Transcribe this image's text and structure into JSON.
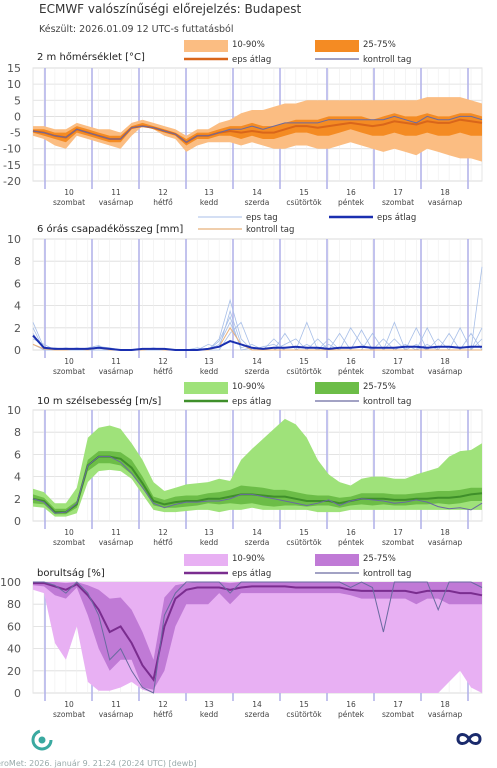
{
  "header": {
    "title": "ECMWF valószínűségi előrejelzés: Budapest",
    "subtitle": "Készült: 2026.01.09 12 UTC-s futtatásból"
  },
  "footer": {
    "text": "eroMet: 2026. január 9. 21:24 (20:24 UTC)  [dewb]"
  },
  "colors": {
    "temp_outer": "#fbbd82",
    "temp_inner": "#f48b23",
    "temp_mean": "#d9661a",
    "wind_outer": "#9fe27a",
    "wind_inner": "#6cbd47",
    "wind_mean": "#3f8f2a",
    "cloud_outer": "#e8b0f3",
    "cloud_inner": "#c07ad6",
    "cloud_mean": "#7a2d8f",
    "precip_member": "#a8bfe8",
    "precip_mean": "#1a2fb0",
    "precip_control": "#e8b07a",
    "control": "#6a6aa0",
    "day_line": "#b4b4ea",
    "grid": "#dcdcdc"
  },
  "days": [
    {
      "num": "10",
      "name": "szombat"
    },
    {
      "num": "11",
      "name": "vasárnap"
    },
    {
      "num": "12",
      "name": "hétfő"
    },
    {
      "num": "13",
      "name": "kedd"
    },
    {
      "num": "14",
      "name": "szerda"
    },
    {
      "num": "15",
      "name": "csütörtök"
    },
    {
      "num": "16",
      "name": "péntek"
    },
    {
      "num": "17",
      "name": "szombat"
    },
    {
      "num": "18",
      "name": "vasárnap"
    }
  ],
  "chart_data": [
    {
      "type": "area",
      "title": "2 m hőmérséklet [°C]",
      "ylim": [
        -20,
        15
      ],
      "yticks": [
        15,
        10,
        5,
        0,
        -5,
        -10,
        -15,
        -20
      ],
      "x_step_hours": 6,
      "legend": {
        "outer": "10-90%",
        "inner": "25-75%",
        "mean": "eps átlag",
        "control": "kontroll tag"
      },
      "p10": [
        -6,
        -7,
        -9,
        -10,
        -6,
        -7,
        -8,
        -9,
        -10,
        -6,
        -3,
        -4,
        -6,
        -7,
        -11,
        -9,
        -8,
        -8,
        -8,
        -9,
        -8,
        -9,
        -10,
        -10,
        -9,
        -9,
        -10,
        -10,
        -9,
        -8,
        -9,
        -10,
        -11,
        -10,
        -11,
        -12,
        -10,
        -11,
        -12,
        -13,
        -13,
        -14
      ],
      "p25": [
        -5,
        -6,
        -7,
        -8,
        -5,
        -6,
        -7,
        -8,
        -8,
        -4,
        -3,
        -4,
        -5,
        -6,
        -9,
        -7,
        -7,
        -6,
        -6,
        -7,
        -6,
        -7,
        -7,
        -6,
        -5,
        -5,
        -6,
        -6,
        -5,
        -4,
        -5,
        -6,
        -6,
        -5,
        -6,
        -6,
        -5,
        -6,
        -6,
        -5,
        -6,
        -6
      ],
      "mean": [
        -4.5,
        -5,
        -6,
        -6.5,
        -4,
        -5,
        -6,
        -7,
        -7,
        -3.5,
        -3,
        -3.5,
        -4.5,
        -5.5,
        -8,
        -6,
        -6,
        -5,
        -4.5,
        -5,
        -4.5,
        -5,
        -5,
        -4,
        -3,
        -3,
        -3.5,
        -3,
        -2.5,
        -2,
        -2.5,
        -3,
        -2.5,
        -1.5,
        -2,
        -2.5,
        -1.5,
        -2,
        -2,
        -1,
        -1.5,
        -2
      ],
      "p75": [
        -4,
        -4,
        -5,
        -5,
        -3,
        -4,
        -5,
        -6,
        -6,
        -3,
        -2,
        -3,
        -4,
        -5,
        -7,
        -5,
        -5,
        -4,
        -3,
        -3,
        -2,
        -3,
        -3,
        -2,
        -1,
        -1,
        -1,
        0,
        0,
        0,
        0,
        -1,
        0,
        1,
        0,
        0,
        1,
        0,
        0,
        1,
        1,
        0
      ],
      "p90": [
        -3,
        -3,
        -4,
        -4,
        -2,
        -3,
        -4,
        -4,
        -5,
        -2,
        -1,
        -2,
        -3,
        -4,
        -6,
        -4,
        -4,
        -2,
        -1,
        1,
        2,
        2,
        3,
        4,
        4,
        5,
        5,
        5,
        5,
        5,
        5,
        5,
        5,
        5,
        5,
        5,
        6,
        6,
        6,
        6,
        5,
        4
      ],
      "control": [
        -4.5,
        -5,
        -6,
        -6.5,
        -4,
        -5,
        -6,
        -7,
        -7,
        -3.5,
        -3,
        -3.5,
        -4.5,
        -5.5,
        -8,
        -6,
        -6,
        -5,
        -4,
        -4,
        -3,
        -4,
        -3,
        -2,
        -2,
        -2,
        -2,
        -1,
        -1,
        -1,
        -1,
        -1,
        -1,
        0,
        -1,
        -2,
        0,
        -1,
        -1,
        0,
        0,
        -1
      ]
    },
    {
      "type": "line",
      "title": "6 órás csapadékösszeg [mm]",
      "ylim": [
        0,
        10
      ],
      "yticks": [
        10,
        8,
        6,
        4,
        2,
        0
      ],
      "x_step_hours": 6,
      "legend": {
        "member": "eps tag",
        "mean": "eps átlag",
        "control": "kontroll tag"
      },
      "mean": [
        1.3,
        0.2,
        0.1,
        0.1,
        0.1,
        0.1,
        0.2,
        0.1,
        0,
        0,
        0.1,
        0.1,
        0.1,
        0,
        0,
        0,
        0.1,
        0.3,
        0.8,
        0.5,
        0.2,
        0.1,
        0.2,
        0.2,
        0.3,
        0.2,
        0.2,
        0.1,
        0.2,
        0.2,
        0.3,
        0.2,
        0.2,
        0.2,
        0.3,
        0.3,
        0.2,
        0.3,
        0.3,
        0.2,
        0.3,
        0.3
      ],
      "members": [
        [
          2.5,
          0.2,
          0,
          0,
          0.1,
          0,
          0.3,
          0,
          0,
          0,
          0,
          0.2,
          0,
          0,
          0,
          0,
          0,
          1,
          4.5,
          1,
          0,
          0,
          0,
          0.5,
          1,
          0,
          0,
          0,
          1.5,
          0,
          0,
          0,
          0,
          1,
          0,
          0,
          0.5,
          0,
          0,
          2,
          0,
          1
        ],
        [
          2.0,
          0,
          0.2,
          0,
          0,
          0.2,
          0.4,
          0,
          0,
          0,
          0,
          0,
          0,
          0,
          0,
          0,
          0.5,
          0.2,
          3.5,
          0.5,
          0,
          0.3,
          0.5,
          0,
          0,
          2.5,
          0,
          0.5,
          0,
          0,
          0,
          1.5,
          0,
          0,
          0,
          2.0,
          0,
          1,
          0,
          0,
          0,
          0
        ],
        [
          1.0,
          0.5,
          0,
          0,
          0,
          0,
          0,
          0,
          0,
          0,
          0,
          0,
          0,
          0,
          0,
          0,
          0,
          0.5,
          2.5,
          0.2,
          0.5,
          0,
          0,
          0,
          0,
          0,
          1,
          0,
          0,
          2,
          0.5,
          0,
          1,
          0,
          0.5,
          0,
          2,
          0,
          0,
          0,
          1.5,
          0
        ],
        [
          0.5,
          0,
          0,
          0.2,
          0,
          0,
          0.3,
          0.2,
          0,
          0,
          0,
          0,
          0,
          0,
          0,
          0,
          0,
          0,
          1.5,
          2.5,
          0,
          0,
          0,
          1.5,
          0,
          0,
          0,
          1,
          0,
          0,
          0,
          0,
          0,
          2.5,
          0,
          0,
          0,
          0,
          1.5,
          0,
          0,
          2
        ],
        [
          1.5,
          0,
          0,
          0,
          0.2,
          0,
          0,
          0,
          0,
          0,
          0,
          0,
          0,
          0,
          0,
          0.2,
          0,
          0.8,
          3.0,
          0,
          0.2,
          0,
          1,
          0,
          0,
          0.5,
          0,
          0,
          0,
          0,
          1.8,
          0,
          0,
          0,
          0,
          0.5,
          0,
          0,
          0,
          0,
          0,
          7.5
        ]
      ],
      "control": [
        0.5,
        0.1,
        0,
        0,
        0.1,
        0,
        0.2,
        0,
        0,
        0,
        0,
        0.1,
        0,
        0,
        0,
        0,
        0,
        0.3,
        2.0,
        0.5,
        0,
        0,
        0,
        0,
        0,
        0,
        0,
        0,
        0,
        0,
        0,
        0,
        0,
        0,
        0,
        0,
        0,
        0,
        0,
        0,
        0,
        0
      ]
    },
    {
      "type": "area",
      "title": "10 m szélsebesség [m/s]",
      "ylim": [
        0,
        10
      ],
      "yticks": [
        10,
        8,
        6,
        4,
        2,
        0
      ],
      "x_step_hours": 6,
      "legend": {
        "outer": "10-90%",
        "inner": "25-75%",
        "mean": "eps átlag",
        "control": "kontroll tag"
      },
      "p10": [
        1.3,
        1.2,
        0.4,
        0.4,
        0.7,
        3.5,
        4.5,
        4.6,
        4.5,
        3.8,
        2.4,
        1,
        0.8,
        0.8,
        0.9,
        1,
        1,
        0.8,
        1,
        1,
        1.2,
        1,
        1,
        1,
        1,
        1,
        0.8,
        0.8,
        0.8,
        1,
        1,
        1,
        1,
        1,
        1,
        1,
        1,
        1,
        1,
        1,
        1,
        1
      ],
      "p25": [
        1.6,
        1.5,
        0.6,
        0.6,
        1.2,
        4.5,
        5.2,
        5.2,
        5.0,
        4.2,
        3.0,
        1.4,
        1.2,
        1.2,
        1.3,
        1.4,
        1.6,
        1.5,
        1.6,
        1.5,
        1.6,
        1.4,
        1.3,
        1.4,
        1.4,
        1.3,
        1.4,
        1.4,
        1.2,
        1.4,
        1.5,
        1.4,
        1.5,
        1.4,
        1.4,
        1.5,
        1.5,
        1.6,
        1.5,
        1.6,
        1.8,
        1.8
      ],
      "mean": [
        2.0,
        1.8,
        0.8,
        0.8,
        1.5,
        5.0,
        5.8,
        5.8,
        5.6,
        4.8,
        3.4,
        1.8,
        1.5,
        1.7,
        1.8,
        1.8,
        2.0,
        2.0,
        2.2,
        2.4,
        2.4,
        2.3,
        2.2,
        2.2,
        2.0,
        1.8,
        1.8,
        1.8,
        1.6,
        1.8,
        2.0,
        2.0,
        2.0,
        1.9,
        1.9,
        2.0,
        2.0,
        2.1,
        2.1,
        2.2,
        2.4,
        2.5
      ],
      "p75": [
        2.4,
        2.1,
        1.1,
        1.1,
        1.8,
        5.5,
        6.3,
        6.3,
        6.2,
        5.5,
        4.0,
        2.2,
        1.9,
        2.2,
        2.3,
        2.3,
        2.5,
        2.6,
        2.8,
        3.2,
        3.1,
        3.0,
        2.8,
        2.8,
        2.6,
        2.4,
        2.3,
        2.3,
        2.1,
        2.2,
        2.5,
        2.5,
        2.5,
        2.4,
        2.4,
        2.5,
        2.6,
        2.7,
        2.7,
        2.8,
        3.0,
        3.0
      ],
      "p90": [
        2.9,
        2.6,
        1.6,
        1.6,
        3.0,
        7.5,
        8.4,
        8.6,
        8.3,
        7.0,
        5.5,
        3.5,
        2.7,
        3.0,
        3.3,
        3.4,
        3.5,
        3.8,
        3.6,
        5.5,
        6.5,
        7.4,
        8.3,
        9.2,
        8.7,
        7.5,
        5.5,
        4.2,
        3.5,
        3.2,
        3.8,
        4.0,
        4.0,
        3.8,
        3.8,
        4.2,
        4.5,
        4.8,
        5.8,
        6.3,
        6.4,
        7.0
      ],
      "control": [
        2.0,
        1.7,
        0.7,
        0.8,
        1.6,
        5.0,
        5.8,
        5.8,
        5.3,
        4.3,
        3.0,
        1.6,
        1.2,
        1.5,
        1.7,
        1.7,
        1.8,
        1.8,
        2.0,
        2.4,
        2.4,
        2.2,
        2.0,
        1.8,
        1.6,
        1.4,
        1.6,
        1.9,
        1.4,
        1.8,
        2.0,
        1.9,
        1.8,
        1.6,
        1.7,
        1.9,
        1.7,
        1.3,
        1.1,
        1.2,
        1.0,
        1.6
      ]
    },
    {
      "type": "area",
      "title": "borultság [%]",
      "ylim": [
        0,
        100
      ],
      "yticks": [
        100,
        80,
        60,
        40,
        20,
        0
      ],
      "x_step_hours": 6,
      "legend": {
        "outer": "10-90%",
        "inner": "25-75%",
        "mean": "eps átlag",
        "control": "kontroll tag"
      },
      "p10": [
        93,
        90,
        45,
        30,
        60,
        10,
        2,
        2,
        5,
        10,
        3,
        0,
        0,
        0,
        0,
        0,
        0,
        0,
        0,
        0,
        0,
        0,
        0,
        0,
        0,
        0,
        0,
        0,
        0,
        0,
        0,
        0,
        0,
        0,
        0,
        0,
        0,
        0,
        10,
        20,
        5,
        0
      ],
      "p25": [
        97,
        96,
        88,
        85,
        95,
        70,
        40,
        20,
        30,
        30,
        5,
        3,
        20,
        60,
        80,
        80,
        80,
        90,
        80,
        90,
        90,
        90,
        90,
        90,
        90,
        90,
        90,
        90,
        90,
        88,
        85,
        85,
        85,
        85,
        85,
        80,
        85,
        85,
        80,
        80,
        80,
        80
      ],
      "mean": [
        99,
        99,
        96,
        93,
        98,
        88,
        75,
        55,
        60,
        45,
        25,
        12,
        60,
        85,
        93,
        95,
        95,
        95,
        93,
        95,
        96,
        96,
        96,
        96,
        95,
        95,
        95,
        95,
        95,
        93,
        92,
        92,
        92,
        92,
        92,
        90,
        92,
        92,
        92,
        90,
        90,
        88
      ],
      "p75": [
        100,
        100,
        100,
        99,
        100,
        97,
        93,
        85,
        86,
        75,
        55,
        30,
        86,
        97,
        99,
        100,
        100,
        100,
        99,
        100,
        100,
        100,
        100,
        100,
        100,
        100,
        100,
        100,
        100,
        100,
        100,
        100,
        100,
        100,
        100,
        100,
        100,
        100,
        100,
        100,
        100,
        100
      ],
      "p90": [
        100,
        100,
        100,
        100,
        100,
        100,
        100,
        100,
        100,
        100,
        100,
        100,
        100,
        100,
        100,
        100,
        100,
        100,
        100,
        100,
        100,
        100,
        100,
        100,
        100,
        100,
        100,
        100,
        100,
        100,
        100,
        100,
        100,
        100,
        100,
        100,
        100,
        100,
        100,
        100,
        100,
        100
      ],
      "control": [
        100,
        100,
        97,
        90,
        100,
        90,
        70,
        30,
        40,
        20,
        5,
        0,
        70,
        90,
        100,
        100,
        100,
        100,
        90,
        100,
        100,
        100,
        100,
        100,
        100,
        100,
        100,
        100,
        100,
        95,
        100,
        95,
        55,
        100,
        100,
        100,
        100,
        75,
        100,
        100,
        100,
        95
      ]
    }
  ]
}
